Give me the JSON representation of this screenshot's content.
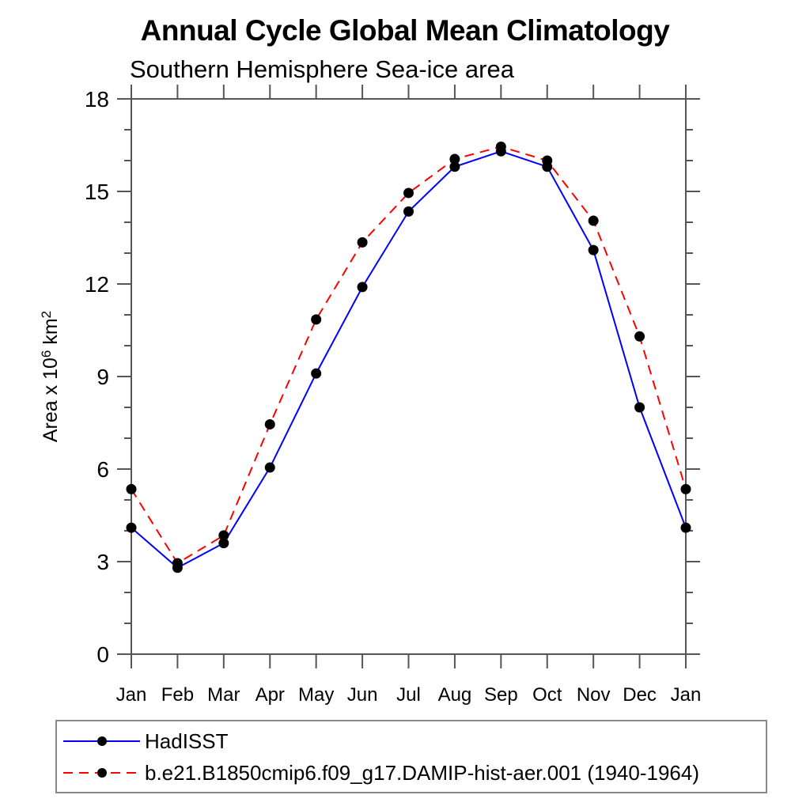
{
  "chart_data": {
    "type": "line",
    "title": "Annual Cycle Global Mean Climatology",
    "subtitle": "Southern Hemisphere Sea-ice area",
    "ylabel": "Area x 10^6 km^2",
    "ylabel_parts": {
      "base": "Area x 10",
      "exp": "6",
      "unit": " km",
      "unit_exp": "2"
    },
    "categories": [
      "Jan",
      "Feb",
      "Mar",
      "Apr",
      "May",
      "Jun",
      "Jul",
      "Aug",
      "Sep",
      "Oct",
      "Nov",
      "Dec",
      "Jan"
    ],
    "y_ticks": [
      0,
      3,
      6,
      9,
      12,
      15,
      18
    ],
    "ylim": [
      0,
      18
    ],
    "y_minor_step": 1,
    "grid": false,
    "axis_color": "#555555",
    "marker_color": "#000000",
    "legend_position": "bottom-left",
    "series": [
      {
        "name": "HadISST",
        "color": "#0000ff",
        "style": "solid",
        "marker": "circle",
        "values": [
          4.1,
          2.8,
          3.6,
          6.05,
          9.1,
          11.9,
          14.35,
          15.8,
          16.3,
          15.8,
          13.1,
          8.0,
          4.1
        ]
      },
      {
        "name": "b.e21.B1850cmip6.f09_g17.DAMIP-hist-aer.001 (1940-1964)",
        "color": "#ff0000",
        "style": "dashed",
        "marker": "circle",
        "values": [
          5.35,
          2.95,
          3.85,
          7.45,
          10.85,
          13.35,
          14.95,
          16.05,
          16.45,
          16.0,
          14.05,
          10.3,
          5.35
        ]
      }
    ]
  },
  "legend": {
    "items": [
      {
        "label": "HadISST",
        "color": "#0000ff",
        "style": "solid"
      },
      {
        "label": "b.e21.B1850cmip6.f09_g17.DAMIP-hist-aer.001 (1940-1964)",
        "color": "#ff0000",
        "style": "dashed"
      }
    ]
  }
}
